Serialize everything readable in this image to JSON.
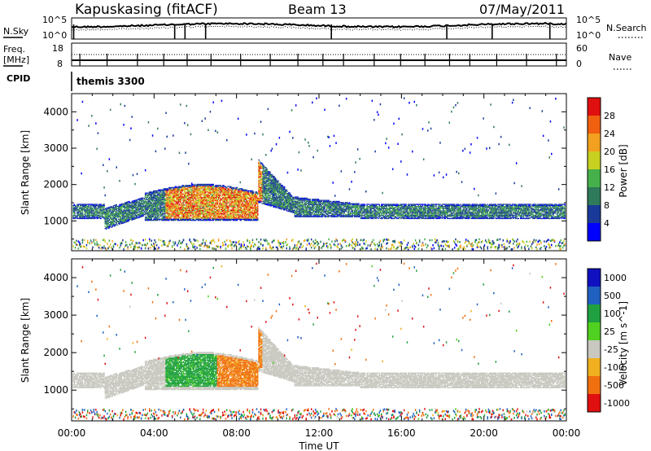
{
  "header": {
    "station": "Kapuskasing (fitACF)",
    "beam": "Beam 13",
    "date": "07/May/2011"
  },
  "status_panels": {
    "nsky_label": "N.Sky",
    "nsearch_label": "N.Search",
    "freq_label": "Freq.",
    "freq_unit": "[MHz]",
    "nave_label": "Nave",
    "cpid_label": "CPID",
    "cpid_value": "themis 3300",
    "noise_ticks": [
      "10^5",
      "10^0"
    ],
    "freq_ticks": [
      "18",
      "8"
    ],
    "nave_ticks": [
      "60",
      "0"
    ]
  },
  "chart_data": [
    {
      "type": "heatmap",
      "name": "power-panel",
      "xlabel": "Time UT",
      "ylabel": "Slant Range [km]",
      "x_ticks": [
        "00:00",
        "04:00",
        "08:00",
        "12:00",
        "16:00",
        "20:00",
        "00:00"
      ],
      "xlim_hours": [
        0,
        24
      ],
      "y_ticks": [
        1000,
        2000,
        3000,
        4000
      ],
      "ylim": [
        180,
        4500
      ],
      "colorbar": {
        "label": "Power [dB]",
        "ticks": [
          4,
          8,
          12,
          16,
          20,
          24,
          28
        ],
        "range": [
          0,
          30
        ],
        "colors": [
          "#0000ff",
          "#1a3a9a",
          "#2f7a5a",
          "#46b04a",
          "#c8d020",
          "#f2a020",
          "#f06010",
          "#e01010"
        ]
      },
      "features": [
        {
          "desc": "main scatter band",
          "start_hour": 0.0,
          "end_hour": 24.0,
          "lower_km": 1000,
          "upper_km": 1600,
          "typical_db": 10
        },
        {
          "desc": "strong echoes",
          "start_hour": 4.5,
          "end_hour": 9.2,
          "lower_km": 1000,
          "upper_km": 2000,
          "typical_db": 22
        },
        {
          "desc": "rising arc",
          "start_hour": 9.0,
          "end_hour": 10.8,
          "lower_km": 1500,
          "upper_km": 2700,
          "typical_db": 12
        }
      ]
    },
    {
      "type": "heatmap",
      "name": "velocity-panel",
      "xlabel": "Time UT",
      "ylabel": "Slant Range [km]",
      "x_ticks": [
        "00:00",
        "04:00",
        "08:00",
        "12:00",
        "16:00",
        "20:00",
        "00:00"
      ],
      "xlim_hours": [
        0,
        24
      ],
      "y_ticks": [
        1000,
        2000,
        3000,
        4000
      ],
      "ylim": [
        180,
        4500
      ],
      "colorbar": {
        "label": "Velocity [m s^-1]",
        "ticks": [
          "1000",
          "500",
          "100",
          "25",
          "-25",
          "-100",
          "-500",
          "-1000"
        ],
        "colors": [
          "#1010c0",
          "#2060c0",
          "#20a040",
          "#50d020",
          "#c8c8c0",
          "#f0b020",
          "#f07010",
          "#e01010"
        ]
      },
      "features": [
        {
          "desc": "ground scatter band (grey)",
          "start_hour": 0.0,
          "end_hour": 24.0,
          "lower_km": 1000,
          "upper_km": 1600,
          "typical_velocity": 0
        },
        {
          "desc": "positive velocities",
          "start_hour": 4.5,
          "end_hour": 7.0,
          "lower_km": 1000,
          "upper_km": 1900,
          "typical_velocity": 150
        },
        {
          "desc": "negative velocities",
          "start_hour": 7.0,
          "end_hour": 9.2,
          "lower_km": 1000,
          "upper_km": 2000,
          "typical_velocity": -200
        }
      ]
    }
  ]
}
